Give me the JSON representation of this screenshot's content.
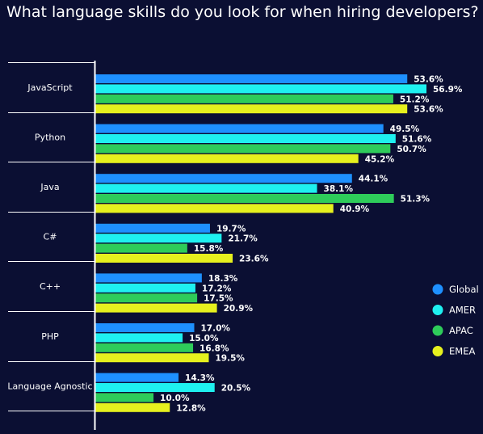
{
  "title": "What language skills do you look for when hiring developers?",
  "chart_data": {
    "type": "bar",
    "orientation": "horizontal",
    "categories": [
      "JavaScript",
      "Python",
      "Java",
      "C#",
      "C++",
      "PHP",
      "Language Agnostic"
    ],
    "series": [
      {
        "name": "Global",
        "color": "#1e90ff",
        "values": [
          53.6,
          49.5,
          44.1,
          19.7,
          18.3,
          17.0,
          14.3
        ]
      },
      {
        "name": "AMER",
        "color": "#1ef0f0",
        "values": [
          56.9,
          51.6,
          38.1,
          21.7,
          17.2,
          15.0,
          20.5
        ]
      },
      {
        "name": "APAC",
        "color": "#2ecc5a",
        "values": [
          51.2,
          50.7,
          51.3,
          15.8,
          17.5,
          16.8,
          10.0
        ]
      },
      {
        "name": "EMEA",
        "color": "#e6f01e",
        "values": [
          53.6,
          45.2,
          40.9,
          23.6,
          20.9,
          19.5,
          12.8
        ]
      }
    ],
    "value_suffix": "%",
    "xlim": [
      0,
      60
    ],
    "legend_position": "right",
    "grid": false
  }
}
